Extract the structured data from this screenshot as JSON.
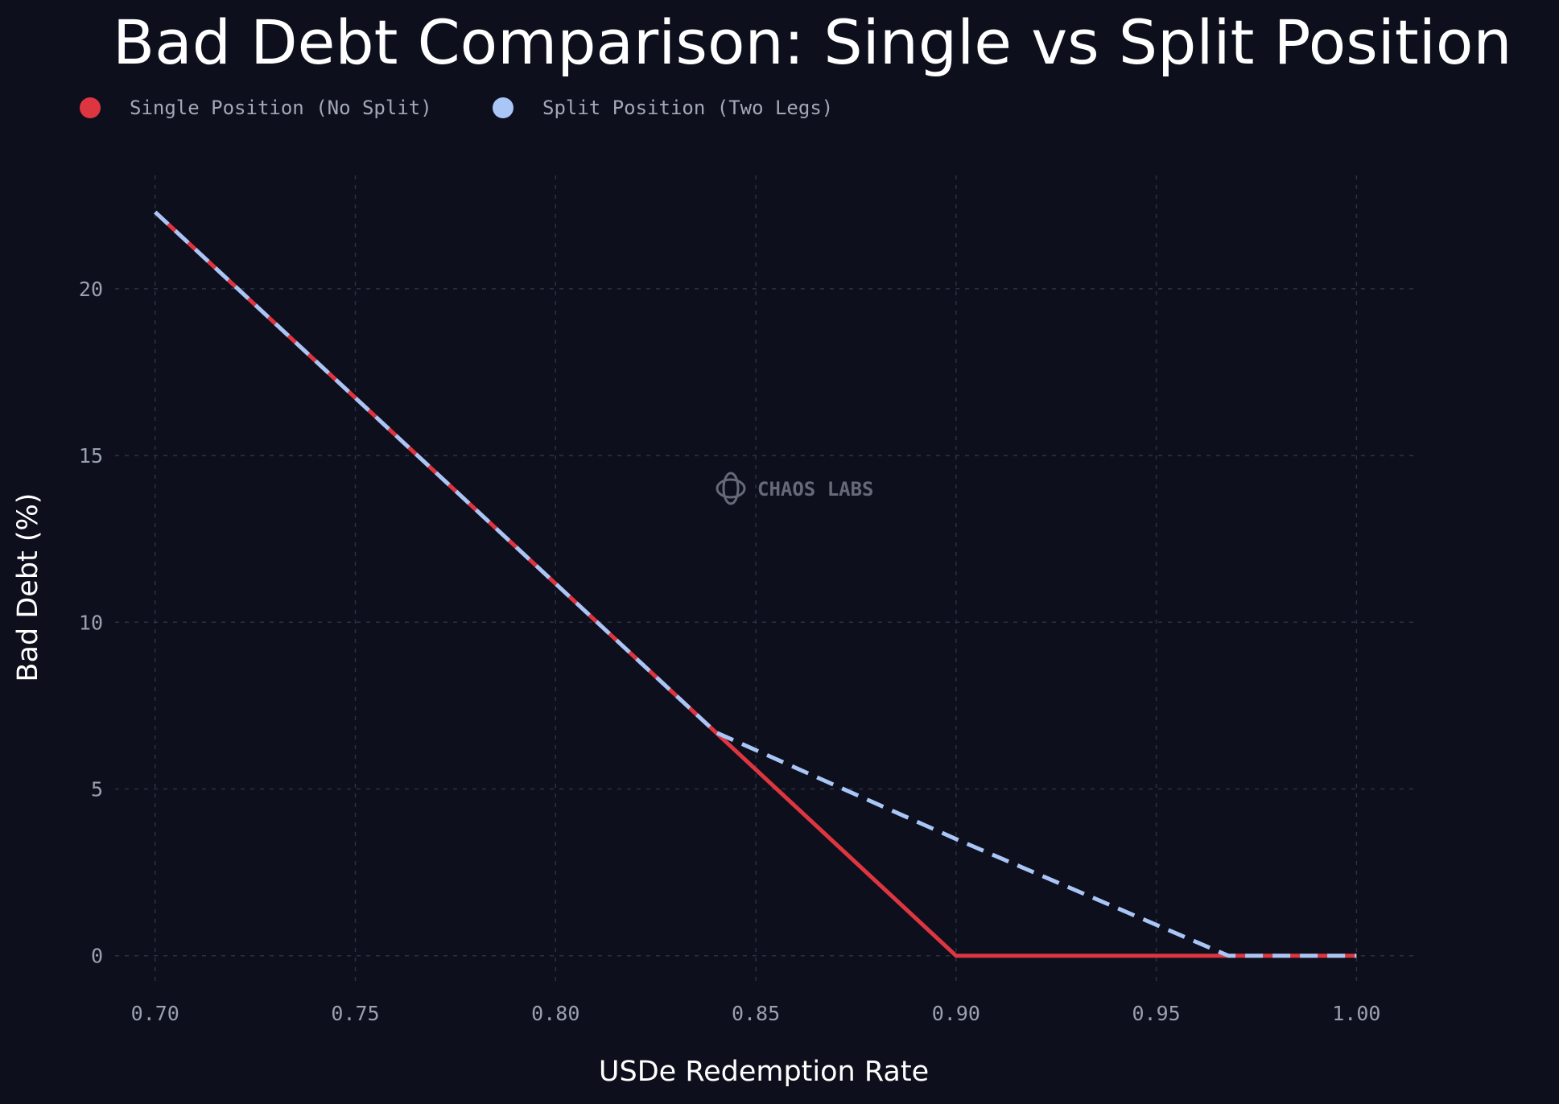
{
  "chart_data": {
    "type": "line",
    "title": "Bad Debt Comparison: Single vs Split Position",
    "xlabel": "USDe Redemption Rate",
    "ylabel": "Bad Debt (%)",
    "xlim": [
      0.69,
      1.015
    ],
    "ylim": [
      -0.9,
      23.4
    ],
    "xticks": [
      0.7,
      0.75,
      0.8,
      0.85,
      0.9,
      0.95,
      1.0
    ],
    "xtick_labels": [
      "0.70",
      "0.75",
      "0.80",
      "0.85",
      "0.90",
      "0.95",
      "1.00"
    ],
    "yticks": [
      0,
      5,
      10,
      15,
      20
    ],
    "ytick_labels": [
      "0",
      "5",
      "10",
      "15",
      "20"
    ],
    "grid": true,
    "legend_position": "top-left",
    "series": [
      {
        "name": "Single Position (No Split)",
        "color": "#de3641",
        "style": "solid",
        "x": [
          0.7,
          0.84,
          0.9,
          1.0
        ],
        "y": [
          22.3,
          6.7,
          0,
          0
        ]
      },
      {
        "name": "Split Position (Two Legs)",
        "color": "#a9c6f7",
        "style": "dashed",
        "x": [
          0.7,
          0.84,
          0.9,
          0.968,
          1.0
        ],
        "y": [
          22.3,
          6.7,
          3.5,
          0,
          0
        ]
      }
    ]
  },
  "watermark": {
    "text": "CHAOS LABS",
    "icon": "chaos-labs-logo-icon"
  }
}
